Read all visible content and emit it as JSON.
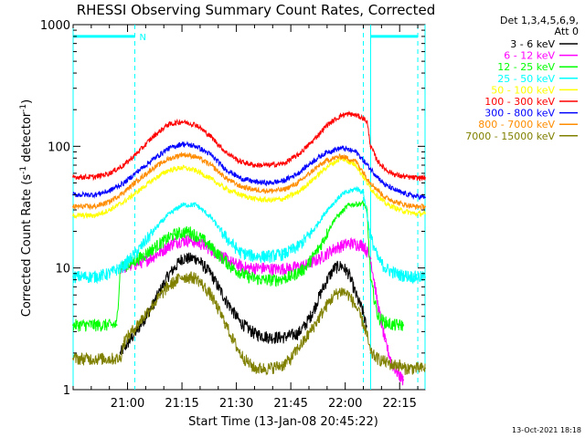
{
  "chart_data": {
    "type": "line",
    "title": "RHESSI Observing Summary Count Rates, Corrected",
    "xlabel": "Start Time (13-Jan-08 20:45:22)",
    "ylabel_main": "Corrected Count Rate (s",
    "ylabel_sup1": "-1",
    "ylabel_mid": " detector",
    "ylabel_sup2": "-1",
    "ylabel_end": ")",
    "yscale": "log",
    "xlim_minutes": [
      0,
      97
    ],
    "ylim": [
      1,
      1000
    ],
    "x_ticks": [
      {
        "minutes": 15,
        "label": "21:00"
      },
      {
        "minutes": 30,
        "label": "21:15"
      },
      {
        "minutes": 45,
        "label": "21:30"
      },
      {
        "minutes": 60,
        "label": "21:45"
      },
      {
        "minutes": 75,
        "label": "22:00"
      },
      {
        "minutes": 90,
        "label": "22:15"
      }
    ],
    "y_ticks": [
      {
        "value": 1,
        "label": "1"
      },
      {
        "value": 10,
        "label": "10"
      },
      {
        "value": 100,
        "label": "100"
      },
      {
        "value": 1000,
        "label": "1000"
      }
    ],
    "legend_header": [
      "Det 1,3,4,5,6,9,",
      "Att 0"
    ],
    "legend_position": "right",
    "footer": "13-Oct-2021 18:18",
    "night_marker": "N",
    "markers": {
      "cyan_solid_x": [
        0,
        82,
        97
      ],
      "cyan_dashed_x": [
        17,
        80,
        95
      ],
      "bar_y": 800,
      "bar_segments": [
        [
          0,
          17
        ],
        [
          82,
          95
        ]
      ],
      "color": "#00ffff"
    },
    "series": [
      {
        "name": "3 - 6 keV",
        "color": "#000000",
        "x": [
          13,
          15,
          18,
          22,
          26,
          30,
          34,
          38,
          42,
          46,
          50,
          54,
          58,
          62,
          64,
          66,
          68,
          70,
          72,
          74,
          76,
          78,
          80,
          81
        ],
        "y": [
          2,
          2.4,
          3.2,
          5,
          8.5,
          12,
          12,
          9,
          5.5,
          3.6,
          2.9,
          2.7,
          2.7,
          2.9,
          3.4,
          4.3,
          6,
          8,
          10,
          10.5,
          9,
          6,
          4.3,
          3
        ]
      },
      {
        "name": "6 - 12 keV",
        "color": "#ff00ff",
        "x": [
          13,
          16,
          20,
          24,
          28,
          32,
          36,
          40,
          44,
          48,
          52,
          56,
          60,
          64,
          68,
          72,
          76,
          80,
          82,
          84,
          86,
          88,
          90,
          91
        ],
        "y": [
          10,
          10.5,
          11.5,
          13.5,
          16.5,
          17,
          15.5,
          13,
          11,
          10,
          10,
          9.8,
          10,
          10.5,
          12,
          14.5,
          16,
          15.5,
          12,
          5,
          2.5,
          1.6,
          1.3,
          1.2
        ]
      },
      {
        "name": "12 - 25 keV",
        "color": "#00ff00",
        "x": [
          0,
          12,
          13,
          16,
          20,
          24,
          28,
          32,
          36,
          40,
          44,
          48,
          52,
          56,
          60,
          64,
          68,
          72,
          76,
          80,
          81,
          82,
          84,
          86,
          88,
          90,
          91
        ],
        "y": [
          3.4,
          3.4,
          10,
          11,
          13,
          16,
          19,
          20,
          17,
          13,
          10,
          8.5,
          8,
          8,
          8.5,
          10,
          15,
          25,
          33,
          34,
          30,
          8,
          4,
          3.6,
          3.4,
          3.4,
          3.4
        ]
      },
      {
        "name": "25 - 50 keV",
        "color": "#00ffff",
        "x": [
          0,
          6,
          10,
          14,
          18,
          22,
          26,
          30,
          34,
          38,
          42,
          46,
          50,
          54,
          58,
          62,
          66,
          70,
          74,
          78,
          80,
          82,
          84,
          86,
          88,
          90,
          94,
          97
        ],
        "y": [
          8.5,
          8.5,
          9,
          10.5,
          14,
          20,
          27,
          33,
          33,
          26,
          18,
          13.5,
          12.5,
          12.5,
          13,
          15,
          20,
          30,
          40,
          45,
          42,
          18,
          12,
          10,
          9.3,
          8.8,
          8.5,
          8.4
        ]
      },
      {
        "name": "50 - 100 keV",
        "color": "#ffff00",
        "x": [
          0,
          6,
          10,
          14,
          18,
          22,
          26,
          30,
          34,
          38,
          42,
          46,
          50,
          54,
          58,
          62,
          66,
          70,
          74,
          78,
          82,
          86,
          90,
          94,
          97
        ],
        "y": [
          27,
          27,
          30,
          35,
          43,
          53,
          63,
          67,
          63,
          54,
          45,
          40,
          37,
          36,
          37,
          42,
          53,
          68,
          80,
          70,
          45,
          34,
          30,
          28,
          28
        ]
      },
      {
        "name": "100 - 300 keV",
        "color": "#ff0000",
        "x": [
          0,
          6,
          10,
          14,
          18,
          22,
          26,
          30,
          34,
          38,
          42,
          46,
          50,
          54,
          58,
          62,
          66,
          70,
          74,
          76,
          78,
          80,
          81,
          82,
          84,
          86,
          88,
          90,
          94,
          97
        ],
        "y": [
          56,
          56,
          60,
          70,
          90,
          120,
          150,
          160,
          150,
          120,
          90,
          75,
          70,
          70,
          72,
          85,
          110,
          150,
          180,
          185,
          180,
          170,
          160,
          100,
          75,
          65,
          60,
          57,
          55,
          55
        ]
      },
      {
        "name": "300 - 800 keV",
        "color": "#0000ff",
        "x": [
          0,
          6,
          10,
          14,
          18,
          22,
          26,
          30,
          34,
          38,
          42,
          46,
          50,
          54,
          58,
          62,
          66,
          70,
          74,
          78,
          82,
          86,
          90,
          94,
          97
        ],
        "y": [
          40,
          40,
          43,
          50,
          63,
          78,
          95,
          105,
          100,
          85,
          65,
          55,
          51,
          50,
          52,
          60,
          75,
          90,
          97,
          90,
          65,
          48,
          42,
          39,
          38
        ]
      },
      {
        "name": "800 - 7000 keV",
        "color": "#ff8c00",
        "x": [
          0,
          6,
          10,
          14,
          18,
          22,
          26,
          30,
          34,
          38,
          42,
          46,
          50,
          54,
          58,
          62,
          66,
          70,
          74,
          78,
          82,
          86,
          90,
          94,
          97
        ],
        "y": [
          32,
          32,
          35,
          42,
          53,
          66,
          78,
          86,
          82,
          70,
          55,
          47,
          44,
          43,
          44,
          50,
          63,
          77,
          83,
          75,
          50,
          38,
          34,
          32,
          32
        ]
      },
      {
        "name": "7000 - 15000 keV",
        "color": "#808000",
        "x": [
          0,
          13,
          14,
          18,
          22,
          26,
          30,
          34,
          38,
          42,
          44,
          46,
          48,
          50,
          54,
          58,
          60,
          62,
          64,
          66,
          68,
          70,
          72,
          74,
          76,
          78,
          80,
          81,
          82,
          84,
          86,
          88,
          90,
          91,
          97
        ],
        "y": [
          1.8,
          1.8,
          2.5,
          3.5,
          5,
          7,
          8.5,
          8.3,
          6,
          3.5,
          2.6,
          2,
          1.7,
          1.5,
          1.5,
          1.6,
          1.8,
          2.2,
          2.6,
          3.2,
          4,
          5,
          6,
          6.5,
          6,
          4.8,
          3.5,
          2.8,
          2,
          1.8,
          1.7,
          1.6,
          1.6,
          1.5,
          1.5
        ]
      }
    ]
  }
}
